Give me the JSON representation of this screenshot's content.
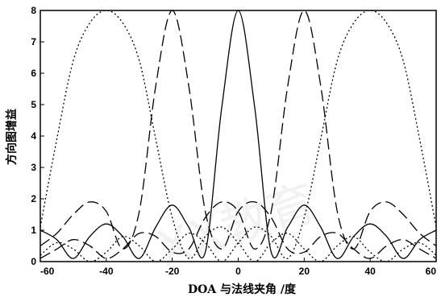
{
  "chart_data": {
    "type": "line",
    "title": "",
    "xlabel": "DOA 与法线夹角 /度",
    "ylabel": "方向图增益",
    "xlim": [
      -60,
      60
    ],
    "ylim": [
      0,
      8
    ],
    "xticks": [
      -60,
      -40,
      -20,
      0,
      20,
      40,
      60
    ],
    "xtick_labels": [
      "-60",
      "-40",
      "-20",
      "0",
      "20",
      "40",
      "60"
    ],
    "yticks": [
      0,
      1,
      2,
      3,
      4,
      5,
      6,
      7,
      8
    ],
    "ytick_labels": [
      "0",
      "1",
      "2",
      "3",
      "4",
      "5",
      "6",
      "7",
      "8"
    ],
    "grid": false,
    "legend": "none",
    "series": [
      {
        "style": "dotted",
        "peak_x": -40,
        "peak_y": 8,
        "x": [
          -60,
          -55,
          -50,
          -45,
          -40,
          -35,
          -30,
          -25,
          -20,
          -15,
          -10,
          -5,
          0,
          5,
          10,
          15,
          20,
          25,
          30,
          35,
          40,
          45,
          50,
          55,
          60
        ],
        "y": [
          1.1,
          3.9,
          6.4,
          7.6,
          8,
          7.6,
          6.4,
          3.9,
          1.4,
          0.1,
          0.8,
          1.1,
          0.6,
          0,
          0.6,
          0.9,
          0.4,
          0,
          0.5,
          0.8,
          0.3,
          0,
          0.4,
          0.6,
          0.2
        ]
      },
      {
        "style": "dashed",
        "peak_x": -20,
        "peak_y": 8,
        "x": [
          -60,
          -55,
          -50,
          -45,
          -40,
          -35,
          -30,
          -25,
          -20,
          -15,
          -10,
          -5,
          0,
          5,
          10,
          15,
          20,
          25,
          30,
          35,
          40,
          45,
          50,
          55,
          60
        ],
        "y": [
          0.5,
          0.9,
          1.5,
          1.9,
          1.6,
          0.4,
          1.6,
          5.6,
          8,
          5.6,
          1.6,
          0.4,
          1.6,
          1.9,
          1.4,
          0.4,
          0.3,
          0.8,
          0.9,
          0.4,
          0.1,
          0.5,
          0.7,
          0.4,
          0.1
        ]
      },
      {
        "style": "solid",
        "peak_x": 0,
        "peak_y": 8,
        "x": [
          -60,
          -55,
          -50,
          -45,
          -40,
          -35,
          -30,
          -25,
          -20,
          -15,
          -10,
          -5,
          0,
          5,
          10,
          15,
          20,
          25,
          30,
          35,
          40,
          45,
          50,
          55,
          60
        ],
        "y": [
          1.0,
          0.7,
          0.1,
          0.8,
          1.2,
          0.8,
          0.1,
          1.1,
          1.8,
          1.1,
          0.3,
          4.9,
          8,
          4.9,
          0.3,
          1.1,
          1.8,
          1.1,
          0.1,
          0.8,
          1.2,
          0.8,
          0.1,
          0.7,
          1.0
        ]
      },
      {
        "style": "dashed",
        "peak_x": 20,
        "peak_y": 8,
        "x": [
          -60,
          -55,
          -50,
          -45,
          -40,
          -35,
          -30,
          -25,
          -20,
          -15,
          -10,
          -5,
          0,
          5,
          10,
          15,
          20,
          25,
          30,
          35,
          40,
          45,
          50,
          55,
          60
        ],
        "y": [
          0.1,
          0.4,
          0.7,
          0.5,
          0.1,
          0.4,
          0.9,
          0.8,
          0.3,
          0.4,
          1.4,
          1.9,
          1.6,
          0.4,
          1.6,
          5.6,
          8,
          5.6,
          1.6,
          0.4,
          1.6,
          1.9,
          1.5,
          0.9,
          0.5
        ]
      },
      {
        "style": "dotted",
        "peak_x": 40,
        "peak_y": 8,
        "x": [
          -60,
          -55,
          -50,
          -45,
          -40,
          -35,
          -30,
          -25,
          -20,
          -15,
          -10,
          -5,
          0,
          5,
          10,
          15,
          20,
          25,
          30,
          35,
          40,
          45,
          50,
          55,
          60
        ],
        "y": [
          0.2,
          0.6,
          0.4,
          0,
          0.3,
          0.8,
          0.5,
          0,
          0.4,
          0.9,
          0.6,
          0,
          0.6,
          1.1,
          0.8,
          0.1,
          1.4,
          3.9,
          6.4,
          7.6,
          8,
          7.6,
          6.4,
          3.9,
          1.1
        ]
      }
    ]
  },
  "watermark": {
    "text": "XX教育"
  }
}
